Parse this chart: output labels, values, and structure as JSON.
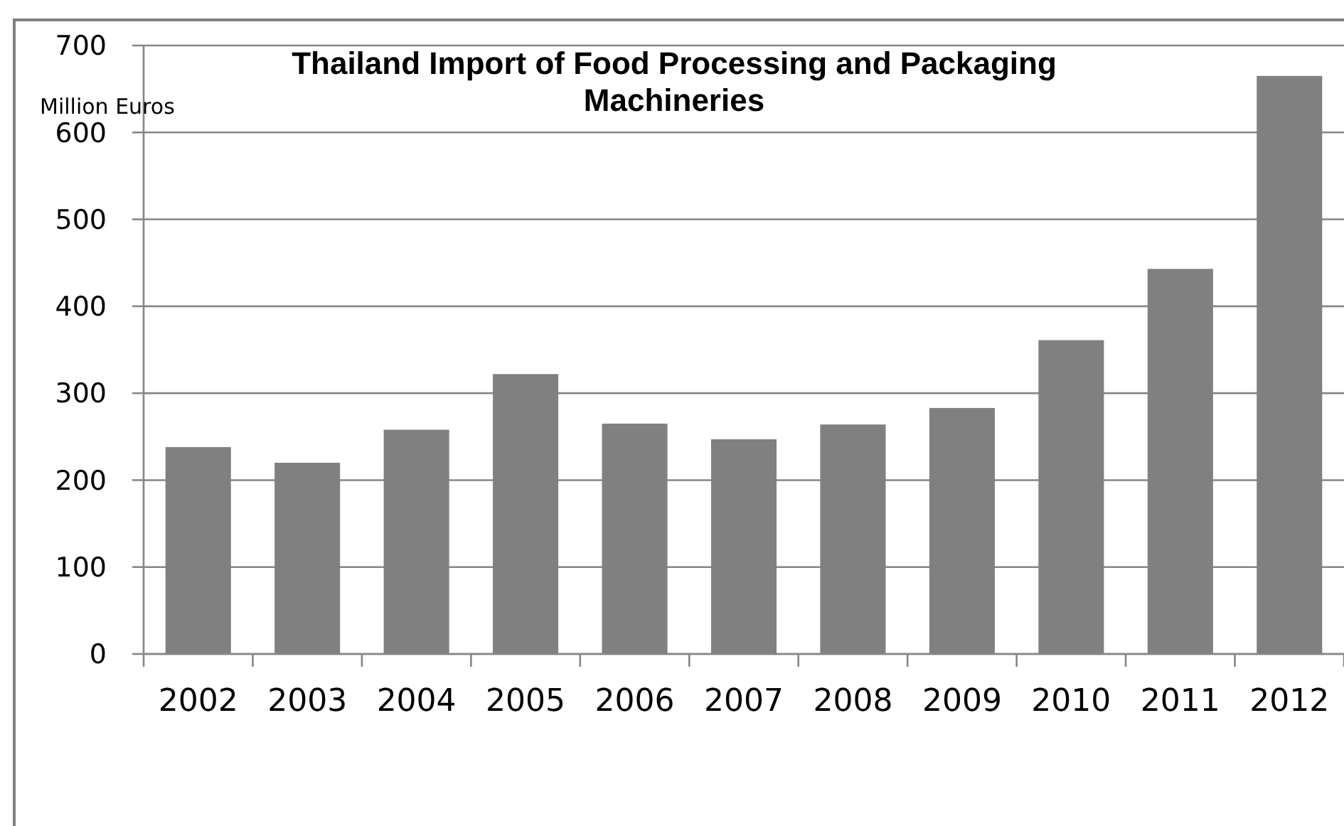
{
  "chart_data": {
    "type": "bar",
    "title": "Thailand Import of Food Processing and Packaging Machineries",
    "ylabel": "Million Euros",
    "categories": [
      "2002",
      "2003",
      "2004",
      "2005",
      "2006",
      "2007",
      "2008",
      "2009",
      "2010",
      "2011",
      "2012"
    ],
    "values": [
      238,
      220,
      258,
      322,
      265,
      247,
      264,
      283,
      361,
      443,
      665
    ],
    "color": "#808080",
    "ylim": [
      0,
      700
    ],
    "yticks": [
      0,
      100,
      200,
      300,
      400,
      500,
      600,
      700
    ],
    "grid": "y"
  }
}
